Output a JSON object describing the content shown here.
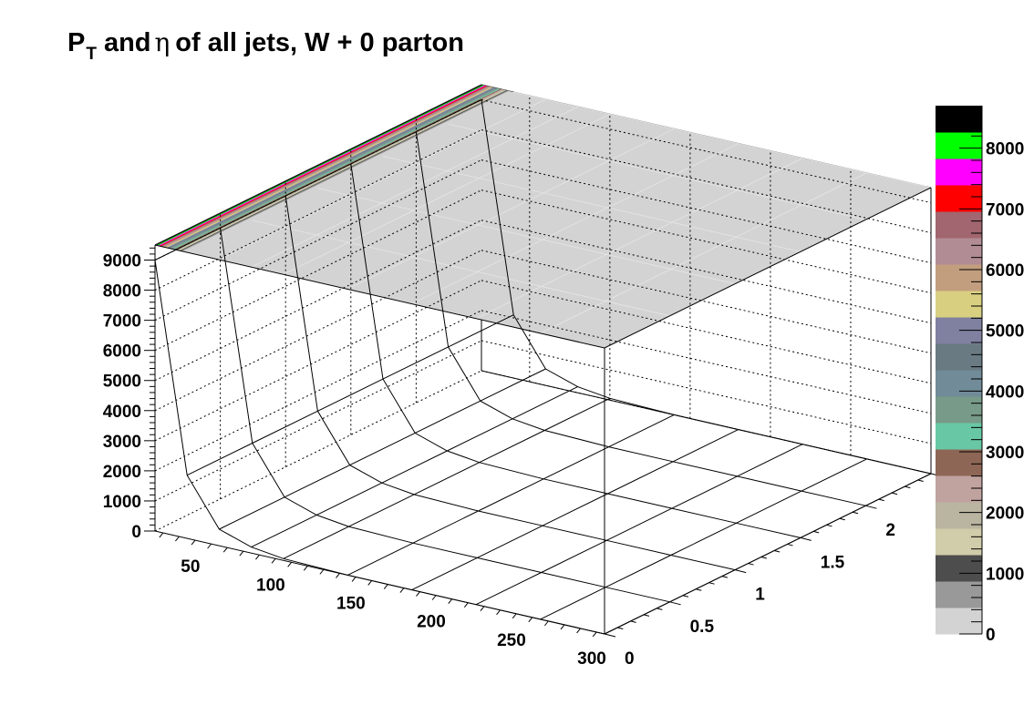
{
  "title": {
    "p": "P",
    "sub": "T",
    "and": "and",
    "eta": "η",
    "rest": "of all jets, W + 0 parton"
  },
  "chart_data": {
    "type": "surface-3d",
    "x_ticks": [
      50,
      100,
      150,
      200,
      250,
      300
    ],
    "x_tick_labels": [
      "50",
      "100",
      "150",
      "200",
      "250",
      "300"
    ],
    "x_range": [
      20,
      300
    ],
    "y_ticks": [
      0,
      0.5,
      1,
      1.5,
      2
    ],
    "y_tick_labels": [
      "0",
      "0.5",
      "1",
      "1.5",
      "2"
    ],
    "y_range": [
      0,
      2.5
    ],
    "z_ticks": [
      0,
      1000,
      2000,
      3000,
      4000,
      5000,
      6000,
      7000,
      8000,
      9000
    ],
    "z_tick_labels": [
      "0",
      "1000",
      "2000",
      "3000",
      "4000",
      "5000",
      "6000",
      "7000",
      "8000",
      "9000"
    ],
    "z_range": [
      0,
      9500
    ],
    "mesh_x": [
      20,
      40,
      60,
      80,
      100,
      140,
      180,
      220,
      260,
      300
    ],
    "mesh_y": [
      0,
      0.5,
      1,
      1.5,
      2,
      2.5
    ],
    "surface_z": [
      [
        9000,
        9000,
        9000,
        9000,
        9000,
        9000
      ],
      [
        2100,
        2100,
        2100,
        2100,
        2100,
        2100
      ],
      [
        550,
        550,
        550,
        550,
        550,
        550
      ],
      [
        200,
        200,
        200,
        200,
        200,
        200
      ],
      [
        60,
        60,
        60,
        60,
        60,
        60
      ],
      [
        0,
        0,
        0,
        0,
        0,
        0
      ],
      [
        0,
        0,
        0,
        0,
        0,
        0
      ],
      [
        0,
        0,
        0,
        0,
        0,
        0
      ],
      [
        0,
        0,
        0,
        0,
        0,
        0
      ],
      [
        0,
        0,
        0,
        0,
        0,
        0
      ]
    ],
    "colz_levels": [
      {
        "from": 0,
        "color": "#d3d3d3"
      },
      {
        "from": 580,
        "color": "#999999"
      },
      {
        "from": 1160,
        "color": "#4d4d4d"
      },
      {
        "from": 1740,
        "color": "#d1ccaa"
      },
      {
        "from": 2320,
        "color": "#bab5a0"
      },
      {
        "from": 2900,
        "color": "#c0a29f"
      },
      {
        "from": 3480,
        "color": "#8e6655"
      },
      {
        "from": 4060,
        "color": "#68c8a5"
      },
      {
        "from": 4640,
        "color": "#789a88"
      },
      {
        "from": 5220,
        "color": "#718b98"
      },
      {
        "from": 5800,
        "color": "#697a82"
      },
      {
        "from": 6380,
        "color": "#8080a0"
      },
      {
        "from": 6960,
        "color": "#d8cf81"
      },
      {
        "from": 7540,
        "color": "#c29e7e"
      },
      {
        "from": 8120,
        "color": "#b18c94"
      },
      {
        "from": 8700,
        "color": "#a1666f"
      },
      {
        "from": 9280,
        "color": "#ff0000"
      },
      {
        "from": 9860,
        "color": "#ff00ff"
      },
      {
        "from": 10440,
        "color": "#00ff00"
      },
      {
        "from": 11020,
        "color": "#000000"
      }
    ],
    "palette_ticks": [
      0,
      1000,
      2000,
      3000,
      4000,
      5000,
      6000,
      7000,
      8000
    ],
    "palette_tick_labels": [
      "0",
      "1000",
      "2000",
      "3000",
      "4000",
      "5000",
      "6000",
      "7000",
      "8000"
    ],
    "palette_range": [
      0,
      8700
    ],
    "grid": true,
    "legend": "right"
  }
}
